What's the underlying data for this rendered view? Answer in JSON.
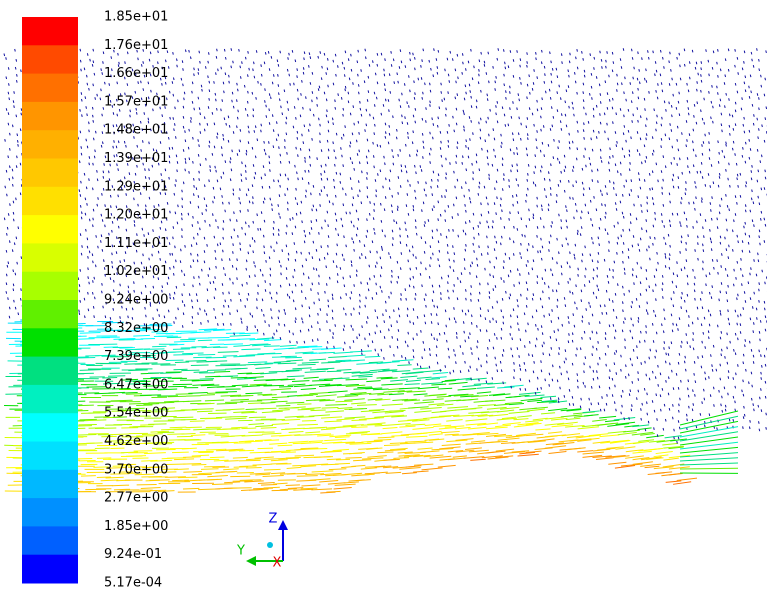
{
  "colorbar": {
    "labels": [
      "1.85e+01",
      "1.76e+01",
      "1.66e+01",
      "1.57e+01",
      "1.48e+01",
      "1.39e+01",
      "1.29e+01",
      "1.20e+01",
      "1.11e+01",
      "1.02e+01",
      "9.24e+00",
      "8.32e+00",
      "7.39e+00",
      "6.47e+00",
      "5.54e+00",
      "4.62e+00",
      "3.70e+00",
      "2.77e+00",
      "1.85e+00",
      "9.24e-01",
      "5.17e-04"
    ],
    "colors": [
      "#ff0000",
      "#ff4a00",
      "#ff7000",
      "#ff9500",
      "#ffb000",
      "#ffc800",
      "#ffe000",
      "#ffff00",
      "#d8ff00",
      "#a8ff00",
      "#60f000",
      "#00e000",
      "#00e080",
      "#00f0c0",
      "#00ffff",
      "#00e0ff",
      "#00b8ff",
      "#0090ff",
      "#0060ff",
      "#0000ff"
    ]
  },
  "axes_triad": {
    "z": "Z",
    "y": "Y",
    "x": "X"
  }
}
